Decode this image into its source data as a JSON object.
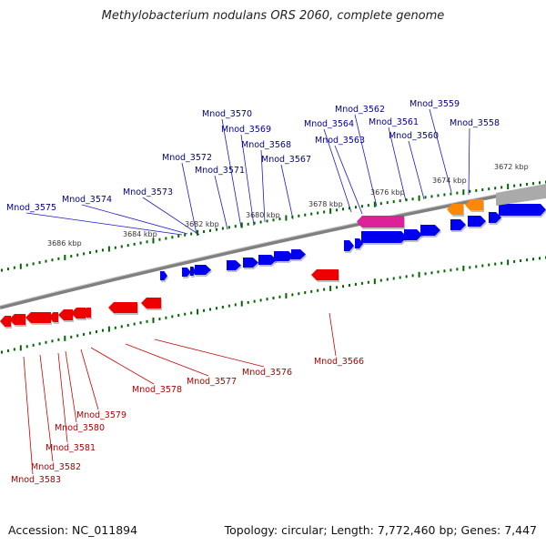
{
  "title": "Methylobacterium nodulans ORS 2060, complete genome",
  "accession": "Accession: NC_011894",
  "info": "Topology: circular; Length: 7,772,460 bp; Genes: 7,447",
  "colors": {
    "forward": "#0000ee",
    "reverse": "#ee0000",
    "rna": "#ff8800",
    "pseudo": "#dd2299",
    "other": "#aaaaaa",
    "tick": "#006600",
    "backbone": "#808080"
  },
  "ticks": [
    {
      "kbp": 3686,
      "label": "3686 kbp"
    },
    {
      "kbp": 3684,
      "label": "3684 kbp"
    },
    {
      "kbp": 3682,
      "label": "3682 kbp"
    },
    {
      "kbp": 3680,
      "label": "3680 kbp"
    },
    {
      "kbp": 3678,
      "label": "3678 kbp"
    },
    {
      "kbp": 3676,
      "label": "3676 kbp"
    },
    {
      "kbp": 3674,
      "label": "3674 kbp"
    },
    {
      "kbp": 3672,
      "label": "3672 kbp"
    }
  ],
  "top_genes": [
    "Mnod_3575",
    "Mnod_3574",
    "Mnod_3573",
    "Mnod_3572",
    "Mnod_3571",
    "Mnod_3570",
    "Mnod_3569",
    "Mnod_3568",
    "Mnod_3567",
    "Mnod_3564",
    "Mnod_3563",
    "Mnod_3562",
    "Mnod_3561",
    "Mnod_3560",
    "Mnod_3559",
    "Mnod_3558"
  ],
  "bottom_genes": [
    "Mnod_3583",
    "Mnod_3582",
    "Mnod_3581",
    "Mnod_3580",
    "Mnod_3579",
    "Mnod_3578",
    "Mnod_3577",
    "Mnod_3576",
    "Mnod_3566"
  ]
}
